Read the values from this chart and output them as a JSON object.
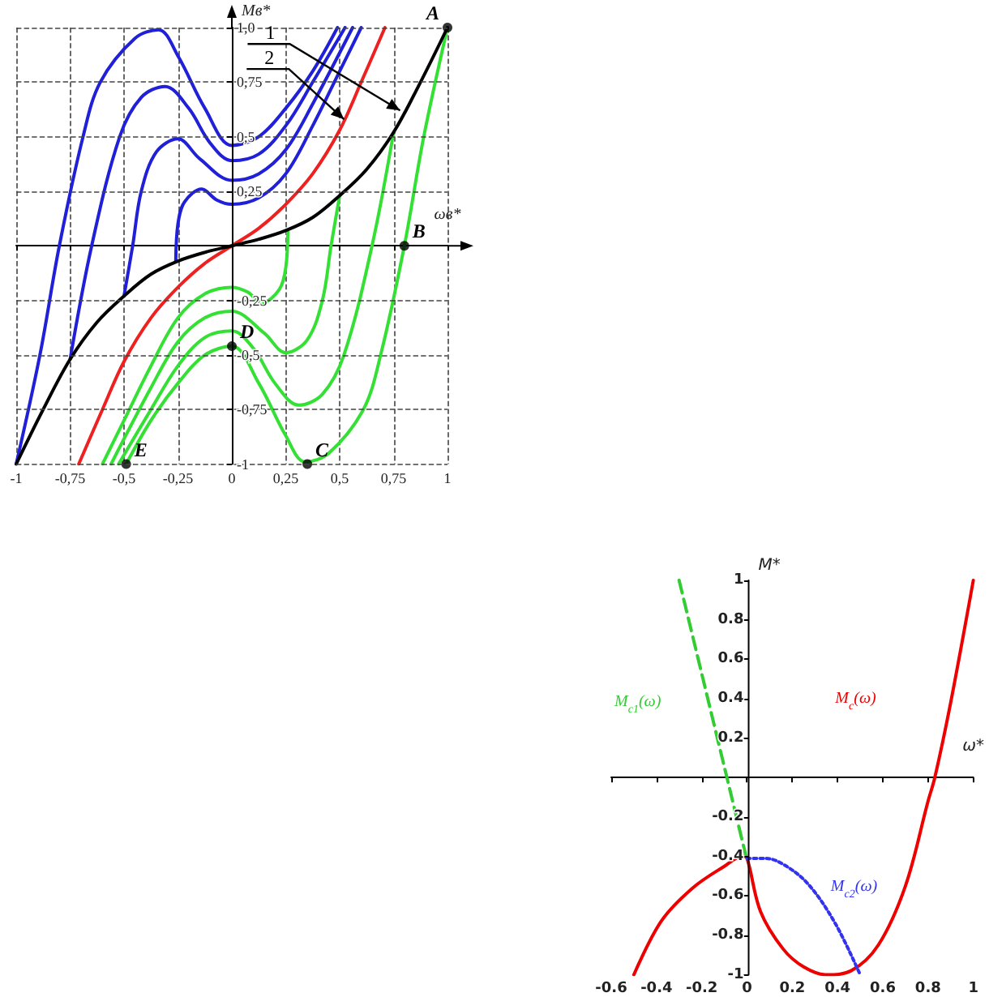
{
  "chart_data": [
    {
      "type": "line",
      "xlabel": "ωв*",
      "ylabel": "Mв*",
      "xlim": [
        -1,
        1
      ],
      "ylim": [
        -1,
        1
      ],
      "xticks": [
        {
          "value": -1,
          "label": "-1"
        },
        {
          "value": -0.75,
          "label": "-0,75"
        },
        {
          "value": -0.5,
          "label": "-0,5"
        },
        {
          "value": -0.25,
          "label": "-0,25"
        },
        {
          "value": 0,
          "label": "0"
        },
        {
          "value": 0.25,
          "label": "0,25"
        },
        {
          "value": 0.5,
          "label": "0,5"
        },
        {
          "value": 0.75,
          "label": "0,75"
        },
        {
          "value": 1,
          "label": "1"
        }
      ],
      "yticks": [
        {
          "value": -1,
          "label": "-1"
        },
        {
          "value": -0.75,
          "label": "-0,75"
        },
        {
          "value": -0.5,
          "label": "-0,5"
        },
        {
          "value": -0.25,
          "label": "-0,25"
        },
        {
          "value": 0.25,
          "label": "0,25"
        },
        {
          "value": 0.5,
          "label": "0,5"
        },
        {
          "value": 0.75,
          "label": "0,75"
        },
        {
          "value": 1,
          "label": "1,0"
        }
      ],
      "grid": true,
      "marker": "none",
      "series": [
        {
          "color": "#2020d8",
          "x": [
            -1,
            -0.89,
            -0.8,
            -0.69,
            -0.61,
            -0.45,
            -0.34,
            -0.25,
            -0.125,
            0,
            0.125,
            0.25,
            0.375,
            0.49
          ],
          "values": [
            -1,
            -0.5,
            0,
            0.5,
            0.75,
            0.95,
            0.99,
            0.87,
            0.63,
            0.46,
            0.5,
            0.63,
            0.8,
            1
          ]
        },
        {
          "color": "#2020d8",
          "x": [
            -0.75,
            -0.65,
            -0.52,
            -0.42,
            -0.31,
            -0.2,
            -0.1,
            0,
            0.125,
            0.25,
            0.375,
            0.525
          ],
          "values": [
            -0.52,
            0,
            0.5,
            0.68,
            0.73,
            0.63,
            0.47,
            0.39,
            0.42,
            0.55,
            0.75,
            1
          ]
        },
        {
          "color": "#2020d8",
          "x": [
            -0.5,
            -0.46,
            -0.42,
            -0.35,
            -0.25,
            -0.15,
            0,
            0.125,
            0.25,
            0.375,
            0.56
          ],
          "values": [
            -0.23,
            0,
            0.25,
            0.43,
            0.49,
            0.4,
            0.3,
            0.33,
            0.44,
            0.65,
            1
          ]
        },
        {
          "color": "#2020d8",
          "x": [
            -0.26,
            -0.25,
            -0.22,
            -0.14,
            -0.07,
            0,
            0.125,
            0.25,
            0.375,
            0.5,
            0.6
          ],
          "values": [
            -0.07,
            0.1,
            0.2,
            0.26,
            0.21,
            0.19,
            0.22,
            0.33,
            0.55,
            0.8,
            1
          ]
        },
        {
          "color": "#33e033",
          "x": [
            1,
            0.89,
            0.8,
            0.69,
            0.61,
            0.45,
            0.34,
            0.25,
            0.125,
            0,
            -0.125,
            -0.25,
            -0.375,
            -0.49
          ],
          "values": [
            1,
            0.5,
            0,
            -0.5,
            -0.75,
            -0.95,
            -0.99,
            -0.87,
            -0.63,
            -0.46,
            -0.5,
            -0.63,
            -0.8,
            -1
          ]
        },
        {
          "color": "#33e033",
          "x": [
            0.75,
            0.65,
            0.52,
            0.42,
            0.31,
            0.2,
            0.1,
            0,
            -0.125,
            -0.25,
            -0.375,
            -0.525
          ],
          "values": [
            0.52,
            0,
            -0.5,
            -0.68,
            -0.73,
            -0.63,
            -0.47,
            -0.39,
            -0.42,
            -0.55,
            -0.75,
            -1
          ]
        },
        {
          "color": "#33e033",
          "x": [
            0.5,
            0.46,
            0.42,
            0.35,
            0.25,
            0.15,
            0,
            -0.125,
            -0.25,
            -0.375,
            -0.56
          ],
          "values": [
            0.23,
            0,
            -0.25,
            -0.43,
            -0.49,
            -0.4,
            -0.3,
            -0.33,
            -0.44,
            -0.65,
            -1
          ]
        },
        {
          "color": "#33e033",
          "x": [
            0.26,
            0.25,
            0.22,
            0.14,
            0.07,
            0,
            -0.125,
            -0.25,
            -0.375,
            -0.5,
            -0.6
          ],
          "values": [
            0.07,
            -0.1,
            -0.2,
            -0.26,
            -0.21,
            -0.19,
            -0.22,
            -0.33,
            -0.55,
            -0.8,
            -1
          ]
        },
        {
          "color": "#ee2020",
          "x": [
            -0.71,
            -0.6,
            -0.5,
            -0.375,
            -0.25,
            -0.125,
            0,
            0.125,
            0.25,
            0.375,
            0.5,
            0.6,
            0.71
          ],
          "values": [
            -1,
            -0.75,
            -0.53,
            -0.33,
            -0.19,
            -0.08,
            0,
            0.08,
            0.19,
            0.33,
            0.53,
            0.75,
            1
          ]
        },
        {
          "color": "#000000",
          "x": [
            -1,
            -0.875,
            -0.75,
            -0.625,
            -0.5,
            -0.375,
            -0.25,
            -0.125,
            0,
            0.125,
            0.25,
            0.375,
            0.5,
            0.625,
            0.75,
            0.875,
            1
          ],
          "values": [
            -1,
            -0.75,
            -0.52,
            -0.35,
            -0.23,
            -0.13,
            -0.07,
            -0.03,
            0,
            0.03,
            0.07,
            0.13,
            0.23,
            0.35,
            0.52,
            0.75,
            1
          ]
        },
        {
          "type": "scatter",
          "marker": "circle",
          "color": "#000000",
          "x": [
            1,
            0.8,
            0.35,
            0,
            -0.49
          ],
          "values": [
            1,
            0,
            -1,
            -0.46,
            -1
          ]
        }
      ],
      "annotations": [
        {
          "text": "A",
          "x": 1,
          "y": 1
        },
        {
          "text": "B",
          "x": 0.8,
          "y": 0
        },
        {
          "text": "C",
          "x": 0.35,
          "y": -1
        },
        {
          "text": "D",
          "x": 0,
          "y": -0.46
        },
        {
          "text": "E",
          "x": -0.49,
          "y": -1
        },
        {
          "text": "1",
          "x": 0.78,
          "y": 0.62
        },
        {
          "text": "2",
          "x": 0.52,
          "y": 0.58
        }
      ]
    },
    {
      "type": "line",
      "xlabel": "ω*",
      "ylabel": "M*",
      "xlim": [
        -0.6,
        1
      ],
      "ylim": [
        -1,
        1
      ],
      "xticks": [
        -0.6,
        -0.4,
        -0.2,
        0,
        0.2,
        0.4,
        0.6,
        0.8,
        1
      ],
      "yticks": [
        -1,
        -0.8,
        -0.6,
        -0.4,
        -0.2,
        0.2,
        0.4,
        0.6,
        0.8,
        1
      ],
      "marker": "none",
      "series": [
        {
          "name": "M$_{c}$(ω)",
          "color": "#ee0000",
          "line_style": "solid",
          "x": [
            -0.5,
            -0.38,
            -0.24,
            -0.1,
            -0.02,
            0,
            0.06,
            0.16,
            0.25,
            0.35,
            0.46,
            0.58,
            0.7,
            0.8,
            0.83,
            0.9,
            1
          ],
          "values": [
            -1,
            -0.73,
            -0.56,
            -0.45,
            -0.4,
            -0.41,
            -0.68,
            -0.87,
            -0.96,
            -1,
            -0.98,
            -0.85,
            -0.55,
            -0.12,
            0,
            0.38,
            1
          ]
        },
        {
          "name": "M$_{c1}$(ω)",
          "color": "#33cc33",
          "line_style": "dashed",
          "x": [
            -0.3,
            0
          ],
          "values": [
            1,
            -0.42
          ]
        },
        {
          "name": "M$_{c2}$(ω)",
          "color": "#3333ee",
          "line_style": "dotted",
          "x": [
            0,
            0.08,
            0.16,
            0.27,
            0.39,
            0.5
          ],
          "values": [
            -0.41,
            -0.41,
            -0.44,
            -0.54,
            -0.74,
            -1
          ]
        }
      ]
    }
  ]
}
